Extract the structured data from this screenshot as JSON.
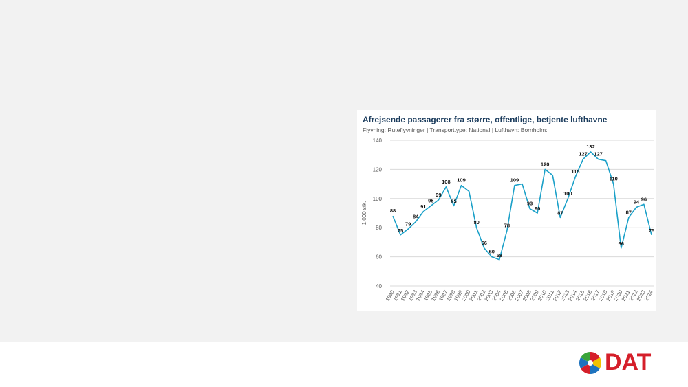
{
  "colors": {
    "line": "#1aa0c8",
    "grid": "#d9d9d9",
    "title": "#1a3b5c",
    "brand_red": "#d51f2a",
    "brand_green": "#3aa43a",
    "brand_yellow": "#f2c200",
    "brand_blue": "#1e73be"
  },
  "logo": {
    "text": "DAT",
    "icon": "dat-propeller-logo-icon"
  },
  "chart_data": {
    "type": "line",
    "title": "Afrejsende passagerer fra større, offentlige, betjente lufthavne",
    "subtitle": "Flyvning: Ruteflyvninger | Transporttype: National | Lufthavn: Bornholm:",
    "ylabel": "1.000 stk.",
    "xlabel": "",
    "ylim": [
      40,
      140
    ],
    "yticks": [
      40,
      60,
      80,
      100,
      120,
      140
    ],
    "grid": true,
    "legend": "none",
    "x": [
      "1990",
      "1991",
      "1992",
      "1993",
      "1994",
      "1995",
      "1996",
      "1997",
      "1998",
      "1999",
      "2000",
      "2001",
      "2002",
      "2003",
      "2004",
      "2005",
      "2006",
      "2007",
      "2008",
      "2009",
      "2010",
      "2011",
      "2012",
      "2013",
      "2014",
      "2015",
      "2016",
      "2017",
      "2018",
      "2019",
      "2020",
      "2021",
      "2022",
      "2023",
      "2024"
    ],
    "values": [
      88,
      75,
      79,
      84,
      91,
      95,
      99,
      108,
      95,
      109,
      105,
      80,
      66,
      60,
      58,
      78,
      109,
      110,
      93,
      90,
      120,
      116,
      87,
      100,
      115,
      127,
      132,
      127,
      126,
      110,
      66,
      87,
      94,
      96,
      75
    ],
    "labeled_points": [
      {
        "x": "1990",
        "label": "88"
      },
      {
        "x": "1991",
        "label": "75"
      },
      {
        "x": "1992",
        "label": "79"
      },
      {
        "x": "1993",
        "label": "84"
      },
      {
        "x": "1994",
        "label": "91"
      },
      {
        "x": "1995",
        "label": "95"
      },
      {
        "x": "1996",
        "label": "99"
      },
      {
        "x": "1997",
        "label": "108"
      },
      {
        "x": "1998",
        "label": "95"
      },
      {
        "x": "1999",
        "label": "109"
      },
      {
        "x": "2001",
        "label": "80"
      },
      {
        "x": "2002",
        "label": "66"
      },
      {
        "x": "2003",
        "label": "60"
      },
      {
        "x": "2004",
        "label": "58"
      },
      {
        "x": "2005",
        "label": "78"
      },
      {
        "x": "2006",
        "label": "109"
      },
      {
        "x": "2008",
        "label": "93"
      },
      {
        "x": "2009",
        "label": "90"
      },
      {
        "x": "2010",
        "label": "120"
      },
      {
        "x": "2012",
        "label": "87"
      },
      {
        "x": "2013",
        "label": "100"
      },
      {
        "x": "2014",
        "label": "115"
      },
      {
        "x": "2015",
        "label": "127"
      },
      {
        "x": "2016",
        "label": "132"
      },
      {
        "x": "2017",
        "label": "127"
      },
      {
        "x": "2019",
        "label": "110"
      },
      {
        "x": "2020",
        "label": "66"
      },
      {
        "x": "2021",
        "label": "87"
      },
      {
        "x": "2022",
        "label": "94"
      },
      {
        "x": "2023",
        "label": "96"
      },
      {
        "x": "2024",
        "label": "75"
      }
    ]
  }
}
